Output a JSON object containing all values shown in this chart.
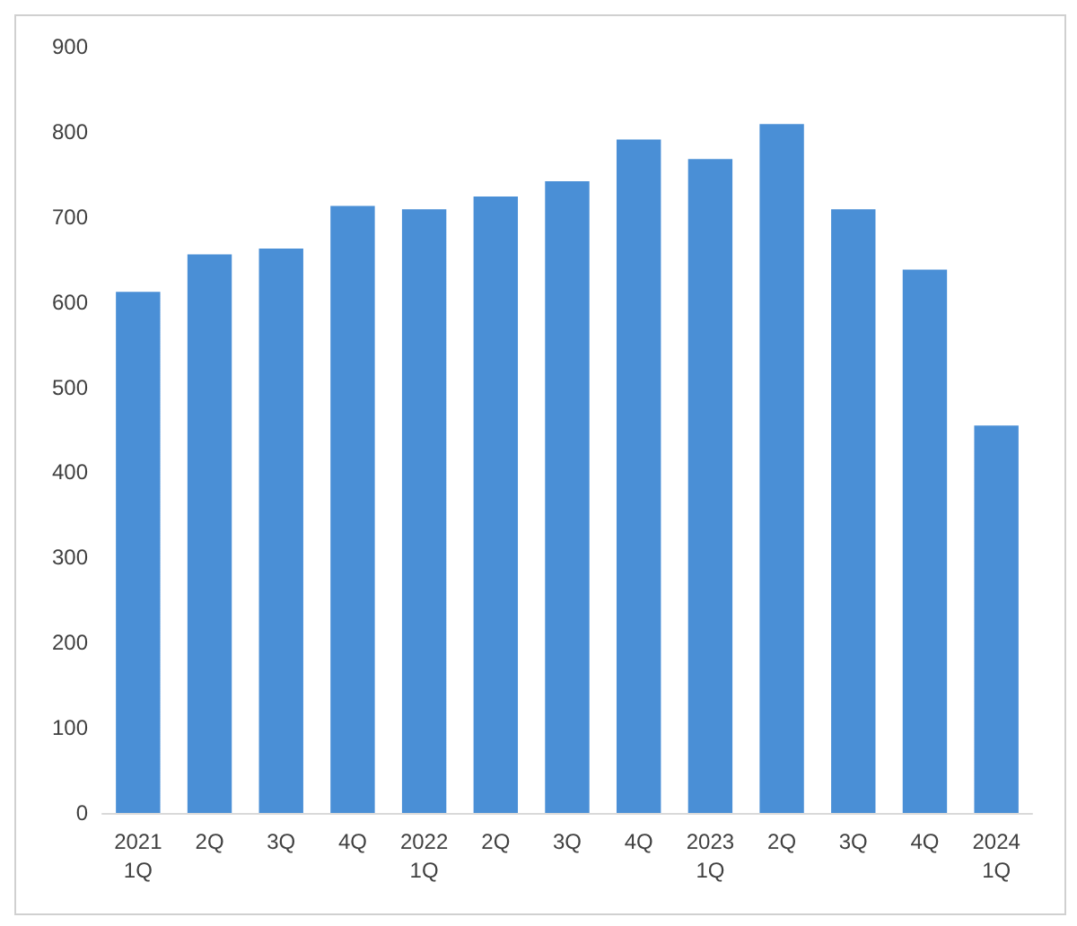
{
  "chart_data": {
    "type": "bar",
    "categories": [
      "2021\n1Q",
      "2Q",
      "3Q",
      "4Q",
      "2022\n1Q",
      "2Q",
      "3Q",
      "4Q",
      "2023\n1Q",
      "2Q",
      "3Q",
      "4Q",
      "2024\n1Q"
    ],
    "values": [
      612,
      656,
      663,
      713,
      709,
      724,
      742,
      791,
      768,
      809,
      709,
      638,
      455
    ],
    "color": "#4a8fd6",
    "ylim": [
      0,
      900
    ],
    "yticks": [
      0,
      100,
      200,
      300,
      400,
      500,
      600,
      700,
      800,
      900
    ]
  }
}
